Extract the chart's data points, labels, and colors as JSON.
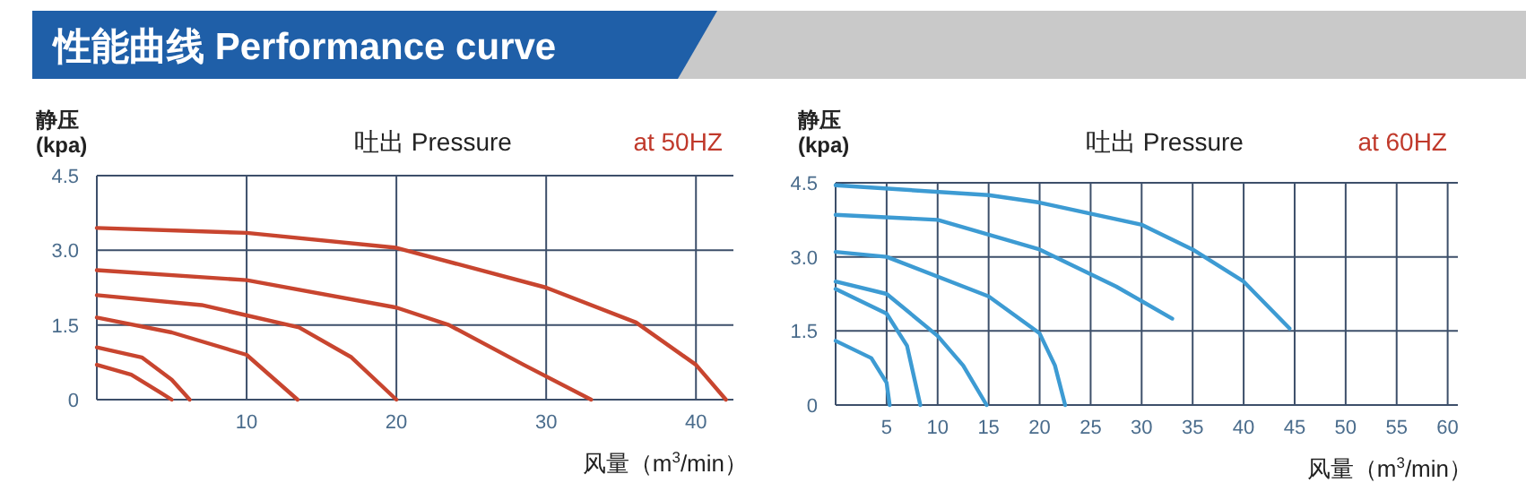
{
  "chart_data": [
    {
      "type": "other",
      "title": "性能曲线 Performance curve"
    },
    {
      "type": "line",
      "title": "吐出 Pressure",
      "subtitle": "at 50HZ",
      "ylabel": "静压 (kpa)",
      "xlabel": "风量（m$^{3}$/min）",
      "xlim": [
        0,
        42.5
      ],
      "ylim": [
        0,
        4.5
      ],
      "xticks": [
        10,
        20,
        30,
        40
      ],
      "yticks": [
        0,
        {
          "value": 1.5,
          "label": "1.5"
        },
        {
          "value": 3,
          "label": "3.0"
        },
        {
          "value": 4.5,
          "label": "4.5"
        }
      ],
      "grid": true,
      "marker": "none",
      "line_style": "solid",
      "series": [
        {
          "color": "#c8452f",
          "x": [
            0,
            10,
            20,
            30,
            36,
            40,
            42
          ],
          "values": [
            3.45,
            3.35,
            3.05,
            2.25,
            1.55,
            0.7,
            0
          ]
        },
        {
          "color": "#c8452f",
          "x": [
            0,
            10,
            20,
            23.5,
            28.5,
            33
          ],
          "values": [
            2.6,
            2.4,
            1.85,
            1.5,
            0.7,
            0
          ]
        },
        {
          "color": "#c8452f",
          "x": [
            0,
            7,
            13.5,
            17,
            20
          ],
          "values": [
            2.1,
            1.9,
            1.45,
            0.85,
            0
          ]
        },
        {
          "color": "#c8452f",
          "x": [
            0,
            5,
            10,
            13.4
          ],
          "values": [
            1.65,
            1.35,
            0.9,
            0
          ]
        },
        {
          "color": "#c8452f",
          "x": [
            0,
            3,
            5,
            6.2
          ],
          "values": [
            1.05,
            0.85,
            0.4,
            0
          ]
        },
        {
          "color": "#c8452f",
          "x": [
            0,
            2.3,
            4.2,
            5
          ],
          "values": [
            0.7,
            0.5,
            0.15,
            0
          ]
        }
      ]
    },
    {
      "type": "line",
      "title": "吐出 Pressure",
      "subtitle": "at 60HZ",
      "ylabel": "静压 (kpa)",
      "xlabel": "风量（m$^{3}$/min）",
      "xlim": [
        0,
        61
      ],
      "ylim": [
        0,
        4.5
      ],
      "xticks": [
        5,
        10,
        15,
        20,
        25,
        30,
        35,
        40,
        45,
        50,
        55,
        60
      ],
      "yticks": [
        0,
        {
          "value": 1.5,
          "label": "1.5"
        },
        {
          "value": 3,
          "label": "3.0"
        },
        {
          "value": 4.5,
          "label": "4.5"
        }
      ],
      "grid": true,
      "marker": "none",
      "line_style": "solid",
      "series": [
        {
          "color": "#3d9bd3",
          "x": [
            0,
            15,
            20,
            30,
            35,
            40,
            44.5
          ],
          "values": [
            4.45,
            4.25,
            4.1,
            3.65,
            3.15,
            2.5,
            1.55
          ]
        },
        {
          "color": "#3d9bd3",
          "x": [
            0,
            10,
            20,
            27.5,
            33
          ],
          "values": [
            3.85,
            3.75,
            3.15,
            2.4,
            1.75
          ]
        },
        {
          "color": "#3d9bd3",
          "x": [
            0,
            5,
            15,
            20,
            21.5,
            22.5
          ],
          "values": [
            3.1,
            3.0,
            2.2,
            1.45,
            0.8,
            0
          ]
        },
        {
          "color": "#3d9bd3",
          "x": [
            0,
            5,
            10,
            12.5,
            14.8
          ],
          "values": [
            2.5,
            2.25,
            1.4,
            0.8,
            0
          ]
        },
        {
          "color": "#3d9bd3",
          "x": [
            0,
            5,
            7,
            8.3
          ],
          "values": [
            2.35,
            1.85,
            1.2,
            0
          ]
        },
        {
          "color": "#3d9bd3",
          "x": [
            0,
            3.5,
            5,
            5.3
          ],
          "values": [
            1.3,
            0.95,
            0.45,
            0
          ]
        }
      ]
    }
  ]
}
